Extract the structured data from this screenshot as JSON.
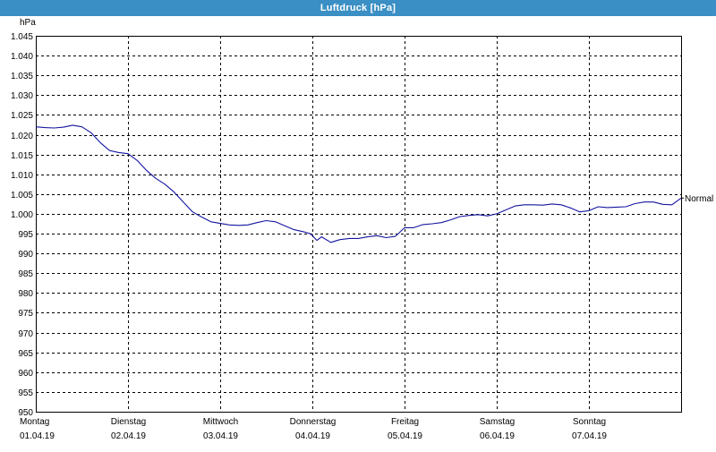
{
  "window": {
    "title": "Luftdruck [hPa]"
  },
  "chart_data": {
    "type": "line",
    "title": "Luftdruck [hPa]",
    "ylabel": "hPa",
    "xlabel": "",
    "ylim": [
      950,
      1045
    ],
    "ytick_step": 5,
    "ytick_labels": [
      "950",
      "955",
      "960",
      "965",
      "970",
      "975",
      "980",
      "985",
      "990",
      "995",
      "1.000",
      "1.005",
      "1.010",
      "1.015",
      "1.020",
      "1.025",
      "1.030",
      "1.035",
      "1.040",
      "1.045"
    ],
    "xlim": [
      0,
      7
    ],
    "x_unit": "days from Montag 01.04.19 00:00",
    "xtick_labels": [
      {
        "day": "Montag",
        "date": "01.04.19"
      },
      {
        "day": "Dienstag",
        "date": "02.04.19"
      },
      {
        "day": "Mittwoch",
        "date": "03.04.19"
      },
      {
        "day": "Donnerstag",
        "date": "04.04.19"
      },
      {
        "day": "Freitag",
        "date": "05.04.19"
      },
      {
        "day": "Samstag",
        "date": "06.04.19"
      },
      {
        "day": "Sonntag",
        "date": "07.04.19"
      }
    ],
    "grid": {
      "horizontal": "dashed",
      "vertical": "dashed"
    },
    "series": [
      {
        "name": "Normal",
        "color": "#1414a0",
        "x": [
          0,
          0.1,
          0.2,
          0.3,
          0.4,
          0.5,
          0.6,
          0.7,
          0.8,
          0.9,
          1.0,
          1.1,
          1.2,
          1.3,
          1.4,
          1.5,
          1.6,
          1.7,
          1.8,
          1.9,
          2.0,
          2.1,
          2.2,
          2.3,
          2.4,
          2.5,
          2.6,
          2.7,
          2.8,
          2.9,
          2.98,
          3.05,
          3.1,
          3.2,
          3.3,
          3.4,
          3.5,
          3.6,
          3.7,
          3.8,
          3.9,
          4.0,
          4.1,
          4.2,
          4.3,
          4.4,
          4.5,
          4.6,
          4.7,
          4.8,
          4.9,
          5.0,
          5.1,
          5.2,
          5.3,
          5.4,
          5.5,
          5.6,
          5.7,
          5.8,
          5.9,
          6.0,
          6.1,
          6.2,
          6.3,
          6.4,
          6.5,
          6.6,
          6.7,
          6.8,
          6.9,
          7.0
        ],
        "values": [
          1022.0,
          1021.8,
          1021.7,
          1021.9,
          1022.4,
          1022.0,
          1020.5,
          1018.0,
          1016.0,
          1015.5,
          1015.2,
          1013.5,
          1011.0,
          1009.0,
          1007.5,
          1005.5,
          1003.0,
          1000.5,
          999.2,
          998.0,
          997.6,
          997.2,
          997.1,
          997.2,
          997.8,
          998.3,
          998.0,
          997.0,
          996.0,
          995.5,
          995.0,
          993.3,
          994.2,
          992.8,
          993.5,
          993.8,
          993.8,
          994.2,
          994.5,
          994.0,
          994.3,
          996.5,
          996.5,
          997.3,
          997.5,
          997.8,
          998.5,
          999.3,
          999.6,
          999.8,
          999.5,
          1000.0,
          1001.0,
          1002.0,
          1002.3,
          1002.3,
          1002.2,
          1002.5,
          1002.3,
          1001.5,
          1000.5,
          1000.8,
          1001.8,
          1001.6,
          1001.7,
          1001.8,
          1002.6,
          1003.0,
          1003.0,
          1002.4,
          1002.3,
          1004.0
        ],
        "end_label": "Normal"
      }
    ]
  }
}
